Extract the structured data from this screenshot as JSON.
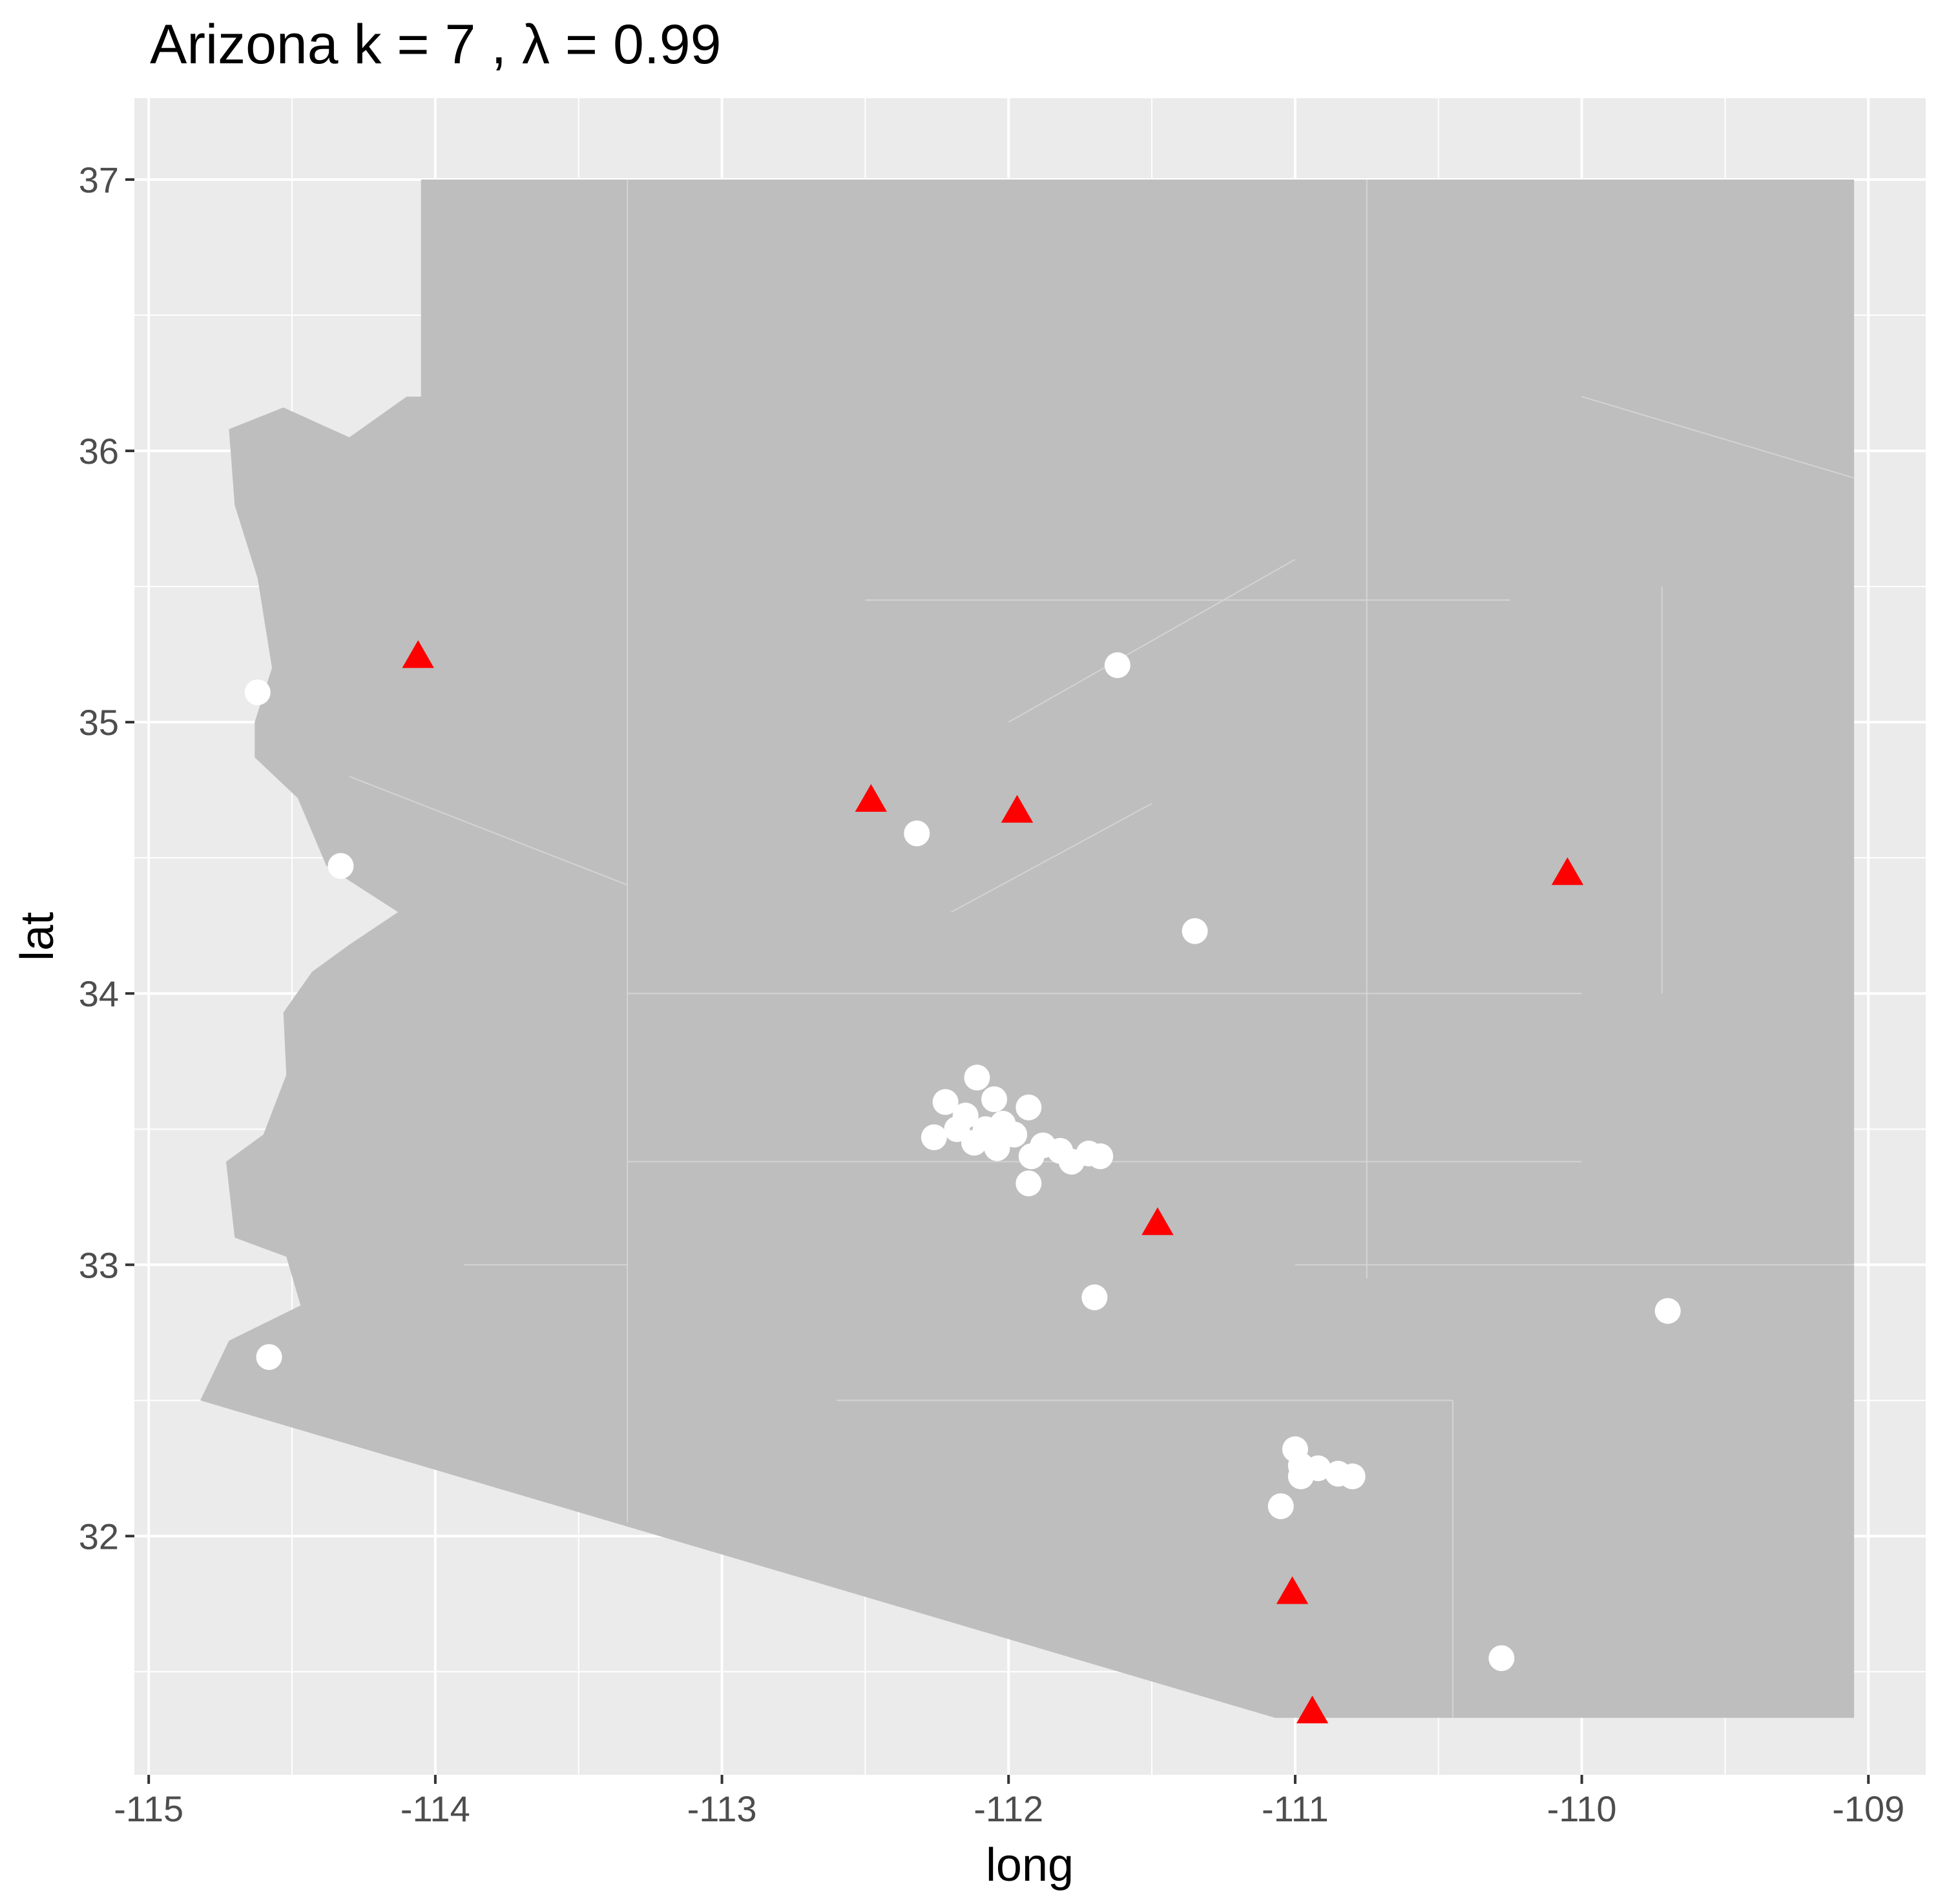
{
  "chart_data": {
    "type": "scatter",
    "title": "Arizona  k =  7 ,  λ  =  0.99",
    "xlabel": "long",
    "ylabel": "lat",
    "xlim": [
      -115.05,
      -108.8
    ],
    "ylim": [
      31.12,
      37.3
    ],
    "x_ticks": [
      -115,
      -114,
      -113,
      -112,
      -111,
      -110,
      -109
    ],
    "x_tick_labels": [
      "-115",
      "-114",
      "-113",
      "-112",
      "-111",
      "-110",
      "-109"
    ],
    "y_ticks": [
      32,
      33,
      34,
      35,
      36,
      37
    ],
    "y_tick_labels": [
      "32",
      "33",
      "34",
      "35",
      "36",
      "37"
    ],
    "grid": true,
    "legend": "none",
    "colors": {
      "panel": "#ebebeb",
      "grid": "#ffffff",
      "state_fill": "#bebebe",
      "tract_border": "#d9d9d9",
      "circle": "#ffffff",
      "triangle": "#ff0000"
    },
    "state_outline": [
      [
        -114.05,
        37.0
      ],
      [
        -109.05,
        37.0
      ],
      [
        -109.05,
        31.33
      ],
      [
        -111.07,
        31.33
      ],
      [
        -114.82,
        32.5
      ],
      [
        -114.72,
        32.72
      ],
      [
        -114.47,
        32.85
      ],
      [
        -114.52,
        33.03
      ],
      [
        -114.7,
        33.1
      ],
      [
        -114.73,
        33.38
      ],
      [
        -114.6,
        33.48
      ],
      [
        -114.52,
        33.7
      ],
      [
        -114.53,
        33.93
      ],
      [
        -114.43,
        34.08
      ],
      [
        -114.3,
        34.18
      ],
      [
        -114.13,
        34.3
      ],
      [
        -114.38,
        34.47
      ],
      [
        -114.48,
        34.72
      ],
      [
        -114.63,
        34.87
      ],
      [
        -114.63,
        35.0
      ],
      [
        -114.57,
        35.2
      ],
      [
        -114.62,
        35.53
      ],
      [
        -114.7,
        35.8
      ],
      [
        -114.72,
        36.08
      ],
      [
        -114.53,
        36.16
      ],
      [
        -114.3,
        36.05
      ],
      [
        -114.1,
        36.2
      ],
      [
        -114.05,
        36.2
      ],
      [
        -114.05,
        37.0
      ]
    ],
    "series": [
      {
        "marker": "circle",
        "points": [
          [
            -114.62,
            35.11
          ],
          [
            -114.33,
            34.47
          ],
          [
            -114.58,
            32.66
          ],
          [
            -111.62,
            35.21
          ],
          [
            -112.32,
            34.59
          ],
          [
            -111.35,
            34.23
          ],
          [
            -112.11,
            33.69
          ],
          [
            -112.22,
            33.6
          ],
          [
            -112.05,
            33.61
          ],
          [
            -112.15,
            33.55
          ],
          [
            -112.02,
            33.52
          ],
          [
            -112.08,
            33.5
          ],
          [
            -111.98,
            33.48
          ],
          [
            -112.18,
            33.5
          ],
          [
            -112.26,
            33.47
          ],
          [
            -112.12,
            33.45
          ],
          [
            -112.04,
            33.43
          ],
          [
            -111.93,
            33.58
          ],
          [
            -111.88,
            33.44
          ],
          [
            -111.82,
            33.42
          ],
          [
            -111.72,
            33.41
          ],
          [
            -111.68,
            33.4
          ],
          [
            -111.78,
            33.38
          ],
          [
            -111.92,
            33.4
          ],
          [
            -111.93,
            33.3
          ],
          [
            -111.7,
            32.88
          ],
          [
            -109.7,
            32.83
          ],
          [
            -111.0,
            32.32
          ],
          [
            -110.98,
            32.26
          ],
          [
            -110.92,
            32.25
          ],
          [
            -110.85,
            32.23
          ],
          [
            -110.98,
            32.22
          ],
          [
            -110.8,
            32.22
          ],
          [
            -111.05,
            32.11
          ],
          [
            -110.28,
            31.55
          ]
        ]
      },
      {
        "marker": "triangle",
        "points": [
          [
            -114.06,
            35.24
          ],
          [
            -112.48,
            34.71
          ],
          [
            -111.97,
            34.67
          ],
          [
            -110.05,
            34.44
          ],
          [
            -111.48,
            33.15
          ],
          [
            -111.01,
            31.79
          ],
          [
            -110.94,
            31.35
          ]
        ]
      }
    ]
  }
}
